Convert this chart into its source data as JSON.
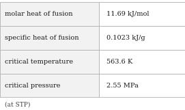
{
  "rows": [
    [
      "molar heat of fusion",
      "11.69 kJ/mol"
    ],
    [
      "specific heat of fusion",
      "0.1023 kJ/g"
    ],
    [
      "critical temperature",
      "563.6 K"
    ],
    [
      "critical pressure",
      "2.55 MPa"
    ]
  ],
  "footer": "(at STP)",
  "col_split": 0.535,
  "bg_color": "#ffffff",
  "border_color": "#b0b0b0",
  "text_color": "#1a1a1a",
  "footer_color": "#444444",
  "font_size": 7.0,
  "footer_font_size": 6.5,
  "fig_width": 2.71,
  "fig_height": 1.61,
  "dpi": 100
}
